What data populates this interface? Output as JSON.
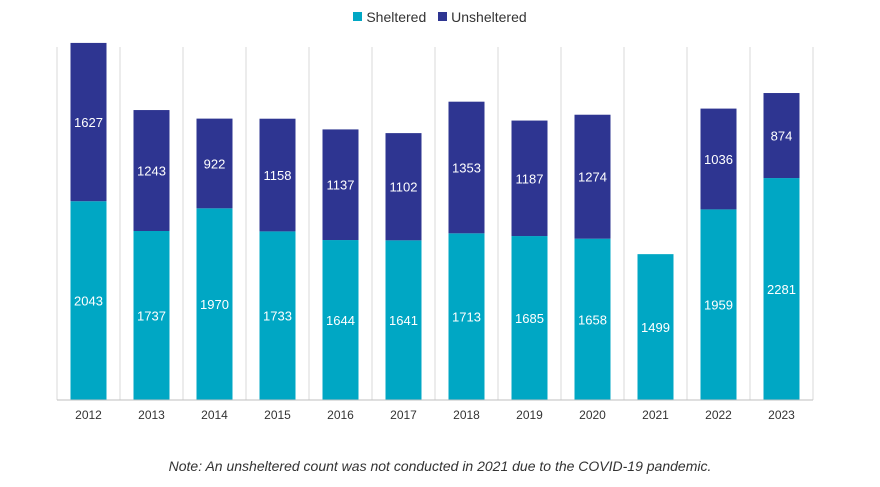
{
  "chart_data": {
    "type": "bar",
    "stacked": true,
    "categories": [
      "2012",
      "2013",
      "2014",
      "2015",
      "2016",
      "2017",
      "2018",
      "2019",
      "2020",
      "2021",
      "2022",
      "2023"
    ],
    "series": [
      {
        "name": "Sheltered",
        "color": "#00a7c4",
        "values": [
          2043,
          1737,
          1970,
          1733,
          1644,
          1641,
          1713,
          1685,
          1658,
          1499,
          1959,
          2281
        ]
      },
      {
        "name": "Unsheltered",
        "color": "#2e3591",
        "values": [
          1627,
          1243,
          922,
          1158,
          1137,
          1102,
          1353,
          1187,
          1274,
          null,
          1036,
          874
        ]
      }
    ],
    "ylim": [
      0,
      3700
    ],
    "grid": "vertical",
    "legend_position": "top-center",
    "note": "Note: An unsheltered count was not conducted in 2021 due to the COVID-19 pandemic."
  }
}
